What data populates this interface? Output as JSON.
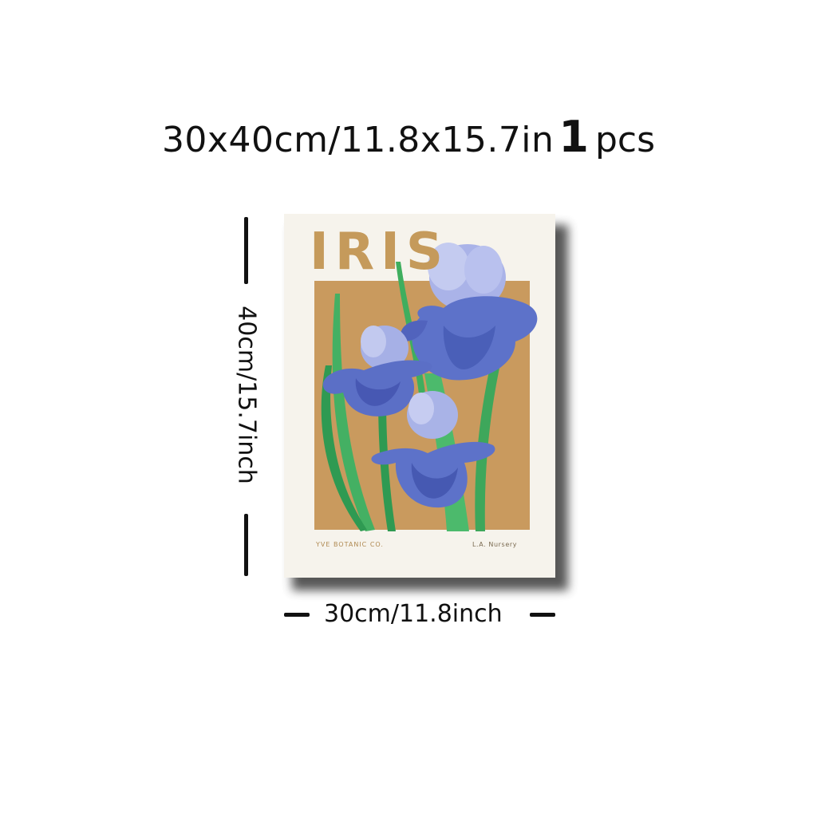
{
  "header": {
    "spec": "30x40cm/11.8x15.7in",
    "quantity": "1",
    "unit": "pcs"
  },
  "dimensions": {
    "height_label": "40cm/15.7inch",
    "width_label": "30cm/11.8inch"
  },
  "poster": {
    "title": "IRIS",
    "brand": "YVE BOTANIC CO.",
    "location": "L.A. Nursery",
    "colors": {
      "background": "#f6f3ec",
      "block": "#c99a5e",
      "title": "#c59a5b",
      "petal": "#5d72c9",
      "petal_light": "#a9b4e6",
      "stem": "#3fae5e"
    },
    "artwork": "iris-flowers-illustration"
  }
}
